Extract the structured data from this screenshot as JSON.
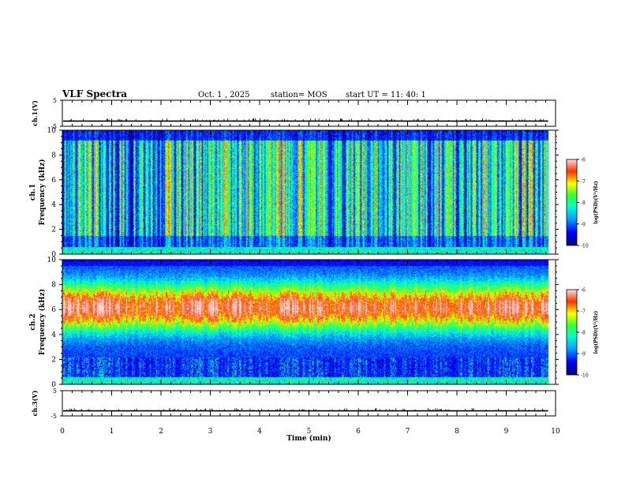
{
  "header": {
    "title": "VLF Spectra",
    "date": "Oct. 1 , 2025",
    "station": "station= MOS",
    "start": "start  UT  =    11: 40: 1"
  },
  "chart_data": [
    {
      "type": "line",
      "name": "channel-1-waveform",
      "ylabel": "ch.1(V)",
      "ylim": [
        -5,
        5
      ],
      "yticks": [
        5,
        -5
      ],
      "x_range": [
        0,
        10
      ],
      "baseline": -3
    },
    {
      "type": "heatmap",
      "name": "channel-1-spectrogram",
      "ylabel_line1": "ch.1",
      "ylabel_line2": "Frequency (kHz)",
      "ylim": [
        0,
        10
      ],
      "yticks": [
        0,
        2,
        4,
        6,
        8,
        10
      ],
      "x_range": [
        0,
        9.85
      ],
      "colorbar": {
        "label": "log(PSD)(V²/Hz)",
        "range": [
          -10,
          -6
        ],
        "ticks": [
          "-6",
          "-7",
          "-8",
          "-9",
          "-10"
        ]
      }
    },
    {
      "type": "heatmap",
      "name": "channel-2-spectrogram",
      "ylabel_line1": "ch.2",
      "ylabel_line2": "Frequency (kHz)",
      "ylim": [
        0,
        10
      ],
      "yticks": [
        0,
        2,
        4,
        6,
        8,
        10
      ],
      "x_range": [
        0,
        9.85
      ],
      "colorbar": {
        "label": "log(PSD)(V²/Hz)",
        "range": [
          -10,
          -6
        ],
        "ticks": [
          "-6",
          "-7",
          "-8",
          "-9",
          "-10"
        ]
      }
    },
    {
      "type": "line",
      "name": "channel-3-waveform",
      "ylabel": "ch.3(V)",
      "ylim": [
        -5,
        5
      ],
      "yticks": [
        5,
        -5
      ],
      "x_range": [
        0,
        10
      ],
      "baseline": -3
    }
  ],
  "xaxis": {
    "label": "Time (min)",
    "xlim": [
      0,
      10
    ],
    "ticks": [
      "0",
      "1",
      "2",
      "3",
      "4",
      "5",
      "6",
      "7",
      "8",
      "9",
      "10"
    ]
  },
  "colors": {
    "axis": "#000000",
    "background": "#ffffff"
  }
}
